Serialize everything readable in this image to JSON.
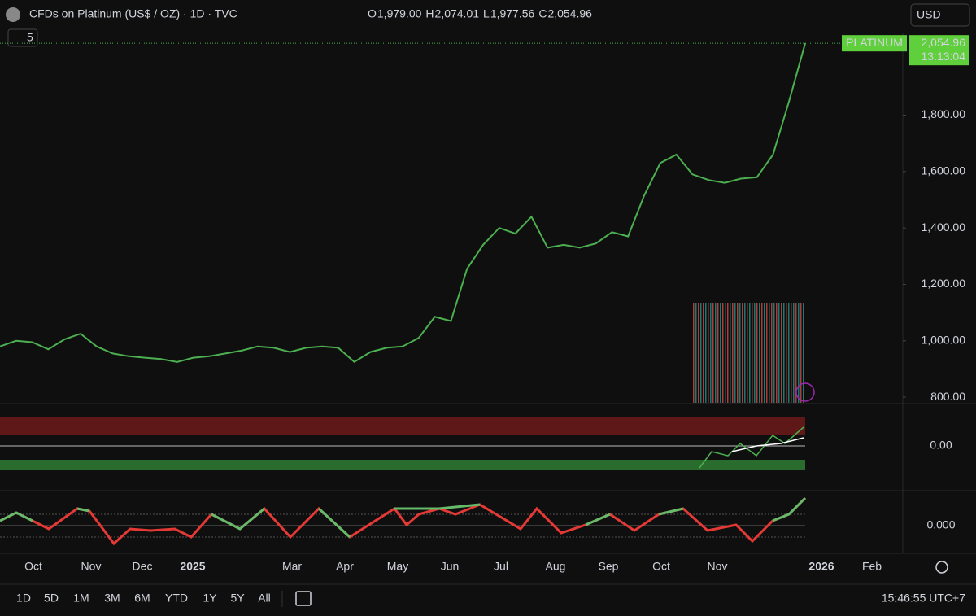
{
  "header": {
    "title": "CFDs on Platinum (US$ / OZ) · 1D · TVC",
    "ohlc": [
      {
        "key": "O",
        "value": "1,979.00"
      },
      {
        "key": "H",
        "value": "2,074.01"
      },
      {
        "key": "L",
        "value": "1,977.56"
      },
      {
        "key": "C",
        "value": "2,054.96"
      }
    ],
    "indicator_count": "5",
    "currency": "USD"
  },
  "chart_data": {
    "type": "line",
    "color": "#4caf50",
    "values": [
      980,
      1000,
      995,
      970,
      1005,
      1025,
      980,
      955,
      945,
      940,
      935,
      925,
      940,
      945,
      955,
      965,
      980,
      975,
      960,
      975,
      980,
      975,
      925,
      960,
      975,
      980,
      1010,
      1085,
      1070,
      1255,
      1340,
      1400,
      1380,
      1440,
      1330,
      1340,
      1330,
      1345,
      1385,
      1370,
      1515,
      1630,
      1660,
      1590,
      1570,
      1560,
      1575,
      1580,
      1660,
      1850,
      2054.96
    ],
    "ylim": [
      780,
      2093
    ],
    "yticks": [
      {
        "value": 800,
        "label": "800.00"
      },
      {
        "value": 1000,
        "label": "1,000.00"
      },
      {
        "value": 1200,
        "label": "1,200.00"
      },
      {
        "value": 1400,
        "label": "1,400.00"
      },
      {
        "value": 1600,
        "label": "1,600.00"
      },
      {
        "value": 1800,
        "label": "1,800.00"
      }
    ],
    "symbol_label": "PLATINUM",
    "last_price": {
      "value": 2054.96,
      "label": "2,054.96"
    },
    "countdown": "13:13:04"
  },
  "oscillators": [
    {
      "zero_label": "0.00"
    },
    {
      "zero_label": "0.000"
    }
  ],
  "time_axis": [
    "Oct",
    "Nov",
    "Dec",
    "2025",
    "Mar",
    "Apr",
    "May",
    "Jun",
    "Jul",
    "Aug",
    "Sep",
    "Oct",
    "Nov",
    "2026",
    "Feb"
  ],
  "toolbar": {
    "ranges": [
      "1D",
      "5D",
      "1M",
      "3M",
      "6M",
      "YTD",
      "1Y",
      "5Y",
      "All"
    ],
    "clock": "15:46:55 UTC+7"
  }
}
